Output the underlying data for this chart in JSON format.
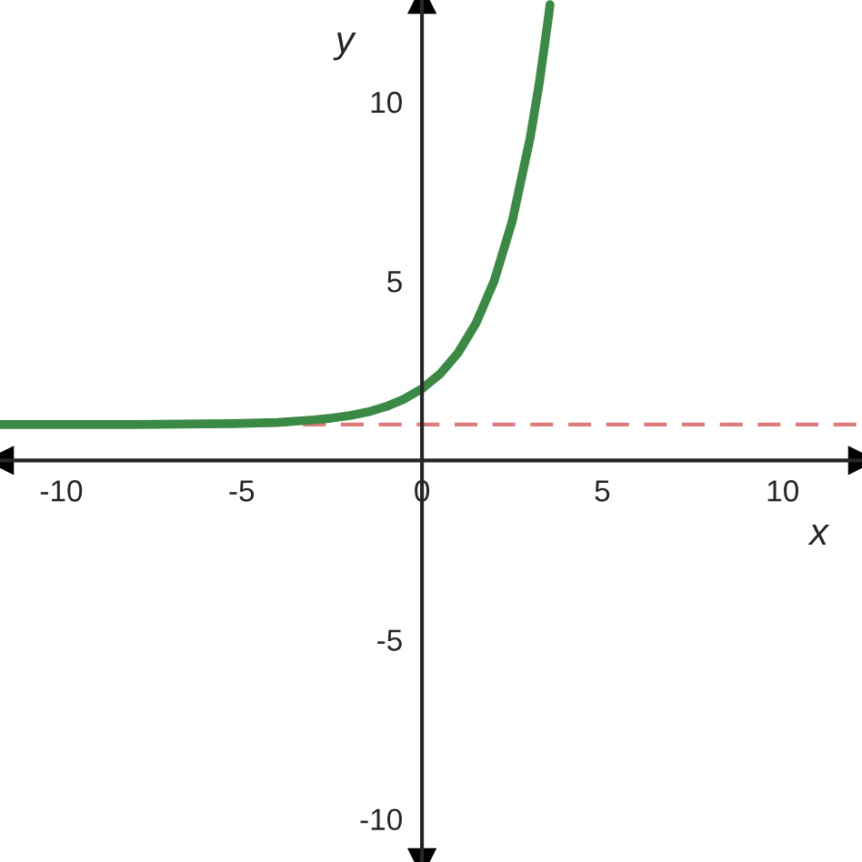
{
  "chart_data": {
    "type": "line",
    "xlabel": "x",
    "ylabel": "y",
    "xlim": [
      -11.7,
      12.2
    ],
    "ylim": [
      -11.2,
      12.84
    ],
    "xticks": [
      -10,
      -5,
      0,
      5,
      10
    ],
    "yticks": [
      -10,
      -5,
      5,
      10
    ],
    "x": [
      -11.7,
      -10,
      -8,
      -6,
      -5,
      -4,
      -3,
      -2.5,
      -2,
      -1.5,
      -1,
      -0.5,
      0,
      0.5,
      1,
      1.5,
      2,
      2.5,
      3,
      3.25,
      3.5,
      3.55
    ],
    "series": [
      {
        "color": "#3a8a45",
        "values": [
          1.0,
          1.0,
          1.0,
          1.02,
          1.03,
          1.06,
          1.13,
          1.18,
          1.25,
          1.35,
          1.5,
          1.71,
          2.0,
          2.41,
          3.0,
          3.83,
          5.0,
          6.66,
          9.0,
          10.51,
          12.31,
          12.71
        ]
      }
    ],
    "ref_lines": [
      {
        "axis": "y",
        "value": 1,
        "label": null,
        "color": "#e07b7b",
        "line_style": "dashed"
      }
    ],
    "grid": false,
    "legend": false
  }
}
